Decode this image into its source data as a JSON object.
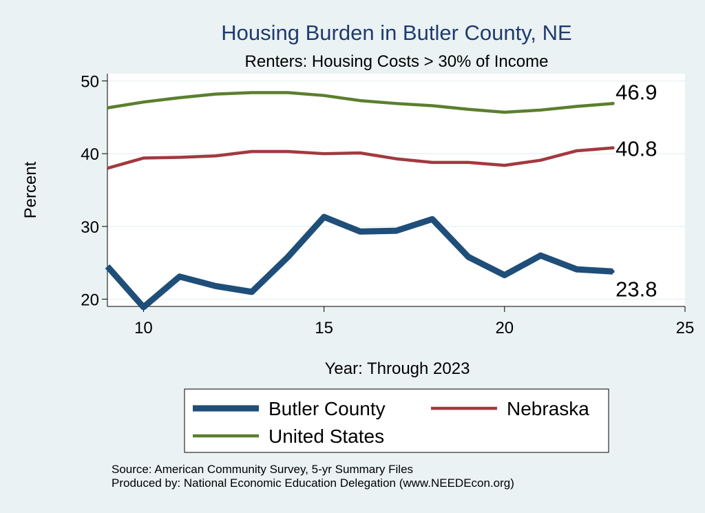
{
  "chart_data": {
    "type": "line",
    "title": "Housing Burden in Butler County, NE",
    "subtitle": "Renters: Housing Costs > 30% of Income",
    "xlabel": "Year: Through 2023",
    "ylabel": "Percent",
    "xlim": [
      9,
      25
    ],
    "ylim": [
      19,
      51
    ],
    "xticks": [
      10,
      15,
      20,
      25
    ],
    "yticks": [
      20,
      30,
      40,
      50
    ],
    "x": [
      9,
      10,
      11,
      12,
      13,
      14,
      15,
      16,
      17,
      18,
      19,
      20,
      21,
      22,
      23
    ],
    "series": [
      {
        "name": "Butler County",
        "color": "#1f4e79",
        "width": 9,
        "values": [
          24.5,
          18.9,
          23.1,
          21.8,
          21.0,
          25.8,
          31.3,
          29.3,
          29.4,
          31.0,
          25.8,
          23.3,
          26.0,
          24.1,
          23.8
        ],
        "end_label": "23.8"
      },
      {
        "name": "Nebraska",
        "color": "#a3393f",
        "width": 4.5,
        "values": [
          38.0,
          39.4,
          39.5,
          39.7,
          40.3,
          40.3,
          40.0,
          40.1,
          39.3,
          38.8,
          38.8,
          38.4,
          39.1,
          40.4,
          40.8
        ],
        "end_label": "40.8"
      },
      {
        "name": "United States",
        "color": "#5b7f2e",
        "width": 4.5,
        "values": [
          46.3,
          47.1,
          47.7,
          48.2,
          48.4,
          48.4,
          48.0,
          47.3,
          46.9,
          46.6,
          46.1,
          45.7,
          46.0,
          46.5,
          46.9
        ],
        "end_label": "46.9"
      }
    ],
    "legend": {
      "position": "bottom",
      "entries": [
        "Butler County",
        "Nebraska",
        "United States"
      ]
    },
    "grid": true
  },
  "footer": {
    "source": "Source: American Community Survey, 5-yr Summary Files",
    "produced_by": "Produced by: National Economic Education Delegation (www.NEEDEcon.org)"
  }
}
